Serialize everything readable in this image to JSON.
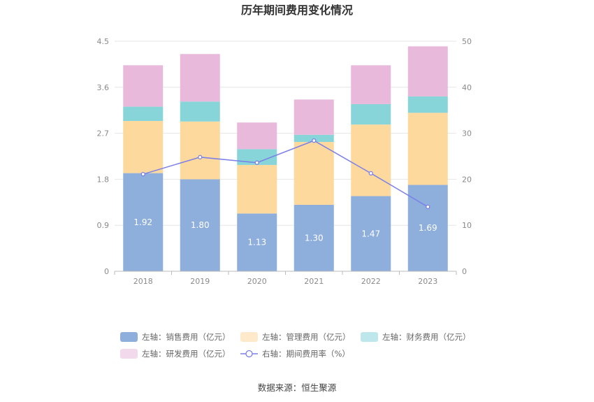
{
  "chart_data": {
    "type": "bar",
    "stacked": true,
    "title": "历年期间费用变化情况",
    "categories": [
      "2018",
      "2019",
      "2020",
      "2021",
      "2022",
      "2023"
    ],
    "y_left": {
      "min": 0,
      "max": 4.5,
      "ticks": [
        "0",
        "0.9",
        "1.8",
        "2.7",
        "3.6",
        "4.5"
      ]
    },
    "y_right": {
      "min": 0,
      "max": 50,
      "ticks": [
        "0",
        "10",
        "20",
        "30",
        "40",
        "50"
      ]
    },
    "series": [
      {
        "name": "左轴：销售费用（亿元）",
        "axis": "left",
        "color": "#8eaedb",
        "values": [
          1.92,
          1.8,
          1.13,
          1.3,
          1.47,
          1.69
        ],
        "labels": [
          "1.92",
          "1.80",
          "1.13",
          "1.30",
          "1.47",
          "1.69"
        ]
      },
      {
        "name": "左轴：管理费用（亿元）",
        "axis": "left",
        "color": "#fed99e",
        "values": [
          1.02,
          1.13,
          0.95,
          1.23,
          1.4,
          1.41
        ]
      },
      {
        "name": "左轴：财务费用（亿元）",
        "axis": "left",
        "color": "#87d4d9",
        "values": [
          0.28,
          0.39,
          0.31,
          0.14,
          0.4,
          0.32
        ]
      },
      {
        "name": "左轴：研发费用（亿元）",
        "axis": "left",
        "color": "#e8b9da",
        "values": [
          0.81,
          0.93,
          0.52,
          0.69,
          0.76,
          0.98
        ]
      },
      {
        "name": "右轴：期间费用率（%）",
        "axis": "right",
        "type": "line",
        "color": "#7b7fe8",
        "values": [
          21.1,
          24.8,
          23.6,
          28.4,
          21.3,
          14.0
        ]
      }
    ],
    "legend_position": "bottom"
  },
  "source": "数据来源：恒生聚源"
}
